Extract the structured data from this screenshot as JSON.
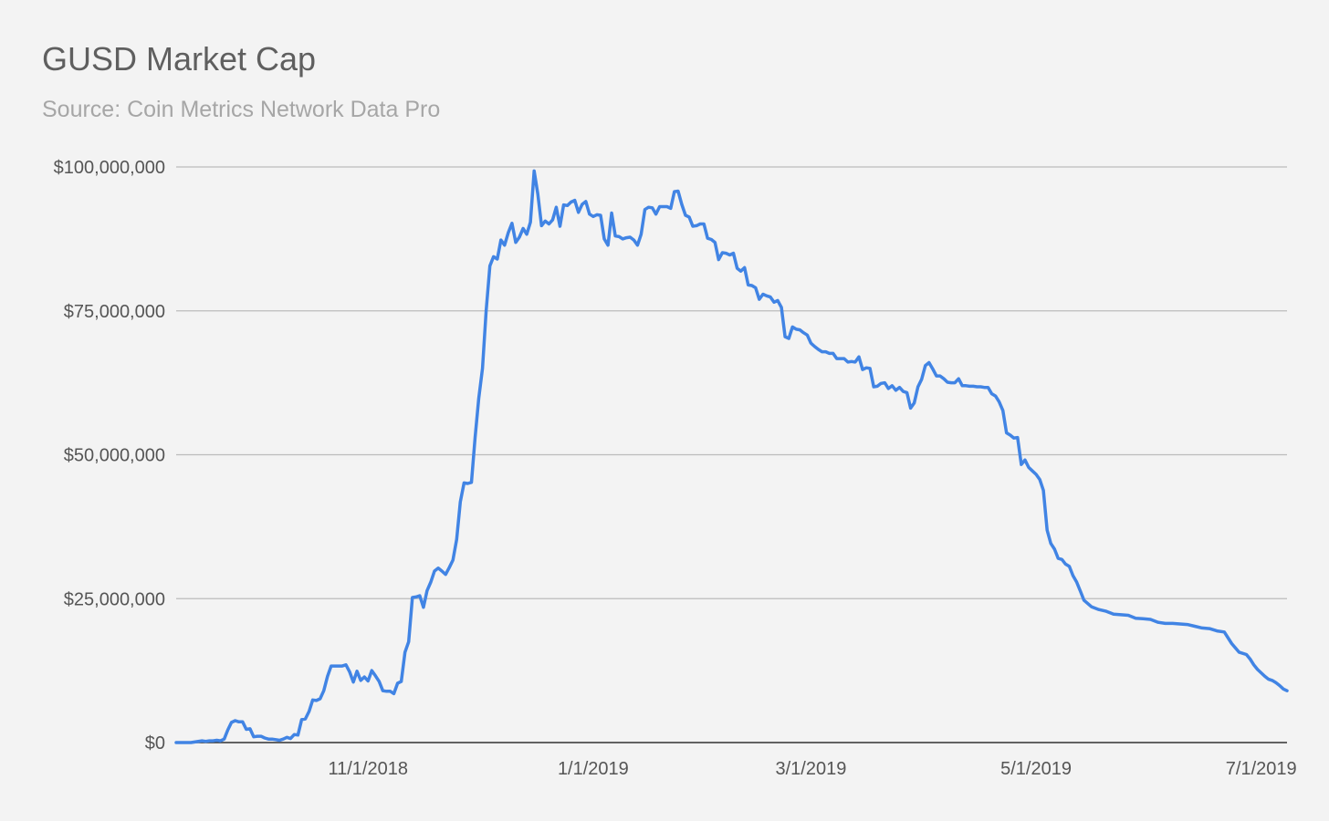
{
  "chart_data": {
    "type": "line",
    "title": "GUSD Market Cap",
    "subtitle": "Source: Coin Metrics Network Data Pro",
    "xlabel": "",
    "ylabel": "",
    "ylim": [
      0,
      100000000
    ],
    "xlim": [
      "2018-09-10",
      "2019-07-08"
    ],
    "y_ticks": [
      {
        "value": 0,
        "label": "$0"
      },
      {
        "value": 25000000,
        "label": "$25,000,000"
      },
      {
        "value": 50000000,
        "label": "$50,000,000"
      },
      {
        "value": 75000000,
        "label": "$75,000,000"
      },
      {
        "value": 100000000,
        "label": "$100,000,000"
      }
    ],
    "x_ticks": [
      {
        "date": "2018-11-01",
        "label": "11/1/2018"
      },
      {
        "date": "2019-01-01",
        "label": "1/1/2019"
      },
      {
        "date": "2019-03-01",
        "label": "3/1/2019"
      },
      {
        "date": "2019-05-01",
        "label": "5/1/2019"
      },
      {
        "date": "2019-07-01",
        "label": "7/1/2019"
      }
    ],
    "grid": true,
    "legend": "none",
    "line_color": "#4184e4",
    "gridline_color": "#bcbcbc",
    "baseline_color": "#333333",
    "series": [
      {
        "x": [
          "2018-09-10",
          "2018-09-14",
          "2018-09-17",
          "2018-09-18",
          "2018-09-19",
          "2018-09-20",
          "2018-09-21",
          "2018-09-22",
          "2018-09-23",
          "2018-09-24",
          "2018-09-25",
          "2018-09-26",
          "2018-09-27",
          "2018-09-28",
          "2018-09-29",
          "2018-09-30",
          "2018-10-01",
          "2018-10-02",
          "2018-10-03",
          "2018-10-04",
          "2018-10-05",
          "2018-10-06",
          "2018-10-07",
          "2018-10-08",
          "2018-10-09",
          "2018-10-10",
          "2018-10-11",
          "2018-10-12",
          "2018-10-13",
          "2018-10-14",
          "2018-10-15",
          "2018-10-16",
          "2018-10-17",
          "2018-10-18",
          "2018-10-19",
          "2018-10-20",
          "2018-10-21",
          "2018-10-22",
          "2018-10-23",
          "2018-10-24",
          "2018-10-25",
          "2018-10-26",
          "2018-10-27",
          "2018-10-28",
          "2018-10-29",
          "2018-10-30",
          "2018-10-31",
          "2018-11-01",
          "2018-11-02",
          "2018-11-03",
          "2018-11-04",
          "2018-11-05",
          "2018-11-06",
          "2018-11-07",
          "2018-11-08",
          "2018-11-09",
          "2018-11-10",
          "2018-11-11",
          "2018-11-12",
          "2018-11-13",
          "2018-11-14",
          "2018-11-15",
          "2018-11-16",
          "2018-11-17",
          "2018-11-18",
          "2018-11-19",
          "2018-11-20",
          "2018-11-21",
          "2018-11-22",
          "2018-11-23",
          "2018-11-24",
          "2018-11-25",
          "2018-11-26",
          "2018-11-27",
          "2018-11-28",
          "2018-11-29",
          "2018-11-30",
          "2018-12-01",
          "2018-12-02",
          "2018-12-03",
          "2018-12-04",
          "2018-12-05",
          "2018-12-06",
          "2018-12-07",
          "2018-12-08",
          "2018-12-09",
          "2018-12-10",
          "2018-12-11",
          "2018-12-12",
          "2018-12-13",
          "2018-12-14",
          "2018-12-15",
          "2018-12-16",
          "2018-12-17",
          "2018-12-18",
          "2018-12-19",
          "2018-12-20",
          "2018-12-21",
          "2018-12-22",
          "2018-12-23",
          "2018-12-24",
          "2018-12-25",
          "2018-12-26",
          "2018-12-27",
          "2018-12-28",
          "2018-12-29",
          "2018-12-30",
          "2018-12-31",
          "2019-01-01",
          "2019-01-02",
          "2019-01-03",
          "2019-01-04",
          "2019-01-05",
          "2019-01-06",
          "2019-01-07",
          "2019-01-08",
          "2019-01-09",
          "2019-01-10",
          "2019-01-11",
          "2019-01-12",
          "2019-01-13",
          "2019-01-14",
          "2019-01-15",
          "2019-01-16",
          "2019-01-17",
          "2019-01-18",
          "2019-01-19",
          "2019-01-20",
          "2019-01-21",
          "2019-01-22",
          "2019-01-23",
          "2019-01-24",
          "2019-01-25",
          "2019-01-26",
          "2019-01-27",
          "2019-01-28",
          "2019-01-29",
          "2019-01-30",
          "2019-01-31",
          "2019-02-01",
          "2019-02-02",
          "2019-02-03",
          "2019-02-04",
          "2019-02-05",
          "2019-02-06",
          "2019-02-07",
          "2019-02-08",
          "2019-02-09",
          "2019-02-10",
          "2019-02-11",
          "2019-02-12",
          "2019-02-13",
          "2019-02-14",
          "2019-02-15",
          "2019-02-16",
          "2019-02-17",
          "2019-02-18",
          "2019-02-19",
          "2019-02-20",
          "2019-02-21",
          "2019-02-22",
          "2019-02-23",
          "2019-02-24",
          "2019-02-25",
          "2019-02-26",
          "2019-02-27",
          "2019-02-28",
          "2019-03-01",
          "2019-03-02",
          "2019-03-03",
          "2019-03-04",
          "2019-03-05",
          "2019-03-06",
          "2019-03-07",
          "2019-03-08",
          "2019-03-09",
          "2019-03-10",
          "2019-03-11",
          "2019-03-12",
          "2019-03-13",
          "2019-03-14",
          "2019-03-15",
          "2019-03-16",
          "2019-03-17",
          "2019-03-18",
          "2019-03-19",
          "2019-03-20",
          "2019-03-21",
          "2019-03-22",
          "2019-03-23",
          "2019-03-24",
          "2019-03-25",
          "2019-03-26",
          "2019-03-27",
          "2019-03-28",
          "2019-03-29",
          "2019-03-30",
          "2019-03-31",
          "2019-04-01",
          "2019-04-02",
          "2019-04-03",
          "2019-04-04",
          "2019-04-05",
          "2019-04-06",
          "2019-04-07",
          "2019-04-08",
          "2019-04-09",
          "2019-04-10",
          "2019-04-11",
          "2019-04-12",
          "2019-04-13",
          "2019-04-14",
          "2019-04-15",
          "2019-04-16",
          "2019-04-17",
          "2019-04-18",
          "2019-04-19",
          "2019-04-20",
          "2019-04-21",
          "2019-04-22",
          "2019-04-23",
          "2019-04-24",
          "2019-04-25",
          "2019-04-26",
          "2019-04-27",
          "2019-04-28",
          "2019-04-29",
          "2019-04-30",
          "2019-05-01",
          "2019-05-02",
          "2019-05-03",
          "2019-05-04",
          "2019-05-05",
          "2019-05-06",
          "2019-05-07",
          "2019-05-08",
          "2019-05-09",
          "2019-05-10",
          "2019-05-11",
          "2019-05-12",
          "2019-05-13",
          "2019-05-14",
          "2019-05-16",
          "2019-05-18",
          "2019-05-20",
          "2019-05-22",
          "2019-05-24",
          "2019-05-26",
          "2019-05-28",
          "2019-05-30",
          "2019-06-01",
          "2019-06-03",
          "2019-06-05",
          "2019-06-07",
          "2019-06-09",
          "2019-06-11",
          "2019-06-13",
          "2019-06-15",
          "2019-06-17",
          "2019-06-19",
          "2019-06-21",
          "2019-06-23",
          "2019-06-25",
          "2019-06-27",
          "2019-06-28",
          "2019-06-29",
          "2019-06-30",
          "2019-07-01",
          "2019-07-02",
          "2019-07-03",
          "2019-07-04",
          "2019-07-05",
          "2019-07-06",
          "2019-07-07",
          "2019-07-08"
        ],
        "values": [
          0,
          0,
          300000,
          200000,
          300000,
          300000,
          400000,
          300000,
          600000,
          2200000,
          3500000,
          3800000,
          3600000,
          3600000,
          2300000,
          2400000,
          1000000,
          1100000,
          1100000,
          800000,
          600000,
          600000,
          500000,
          400000,
          600000,
          900000,
          700000,
          1400000,
          1300000,
          4000000,
          4100000,
          5400000,
          7400000,
          7300000,
          7600000,
          9000000,
          11500000,
          13300000,
          13300000,
          13300000,
          13300000,
          13500000,
          12300000,
          10500000,
          12400000,
          10800000,
          11400000,
          10700000,
          12500000,
          11600000,
          10600000,
          9000000,
          8900000,
          8900000,
          8500000,
          10300000,
          10600000,
          15700000,
          17500000,
          25200000,
          25300000,
          25500000,
          23500000,
          26400000,
          27900000,
          29800000,
          30300000,
          29800000,
          29200000,
          30400000,
          31700000,
          35300000,
          41800000,
          45100000,
          45000000,
          45200000,
          53000000,
          59800000,
          65000000,
          75000000,
          82800000,
          84400000,
          84000000,
          87300000,
          86400000,
          88600000,
          90200000,
          86900000,
          87800000,
          89300000,
          88300000,
          90400000,
          99300000,
          95300000,
          89800000,
          90600000,
          90100000,
          90800000,
          93000000,
          89700000,
          93400000,
          93300000,
          93900000,
          94200000,
          92100000,
          93500000,
          94000000,
          91800000,
          91400000,
          91700000,
          91600000,
          87500000,
          86400000,
          92000000,
          88000000,
          87900000,
          87500000,
          87700000,
          87800000,
          87300000,
          86400000,
          88300000,
          92600000,
          93000000,
          92900000,
          91800000,
          93100000,
          93100000,
          93100000,
          92800000,
          95700000,
          95800000,
          93500000,
          91600000,
          91300000,
          89700000,
          89800000,
          90100000,
          90100000,
          87600000,
          87400000,
          86900000,
          83900000,
          85100000,
          85000000,
          84700000,
          85000000,
          82400000,
          81900000,
          82500000,
          79500000,
          79400000,
          79000000,
          77000000,
          77900000,
          77600000,
          77400000,
          76500000,
          76800000,
          75600000,
          70500000,
          70200000,
          72200000,
          71800000,
          71700000,
          71200000,
          70800000,
          69400000,
          68800000,
          68300000,
          67900000,
          67900000,
          67600000,
          67600000,
          66700000,
          66700000,
          66700000,
          66100000,
          66200000,
          66100000,
          67000000,
          64800000,
          65100000,
          65000000,
          61800000,
          61900000,
          62400000,
          62500000,
          61500000,
          62000000,
          61200000,
          61700000,
          61000000,
          60800000,
          58100000,
          59000000,
          61800000,
          63100000,
          65500000,
          66000000,
          64900000,
          63700000,
          63700000,
          63200000,
          62600000,
          62500000,
          62500000,
          63200000,
          62000000,
          62000000,
          61900000,
          61900000,
          61800000,
          61800000,
          61700000,
          61700000,
          60600000,
          60200000,
          59200000,
          57700000,
          53800000,
          53400000,
          52900000,
          53000000,
          48300000,
          49100000,
          47800000,
          47200000,
          46600000,
          45700000,
          43800000,
          36900000,
          34600000,
          33600000,
          32000000,
          31800000,
          31000000,
          30600000,
          29000000,
          27900000,
          26300000,
          24700000,
          23600000,
          23100000,
          22800000,
          22300000,
          22200000,
          22100000,
          21600000,
          21500000,
          21400000,
          20900000,
          20700000,
          20700000,
          20600000,
          20500000,
          20200000,
          19900000,
          19800000,
          19400000,
          19200000,
          17200000,
          15700000,
          15300000,
          14500000,
          13500000,
          12700000,
          12100000,
          11500000,
          11000000,
          10800000,
          10400000,
          9900000,
          9300000,
          9000000
        ]
      }
    ]
  }
}
